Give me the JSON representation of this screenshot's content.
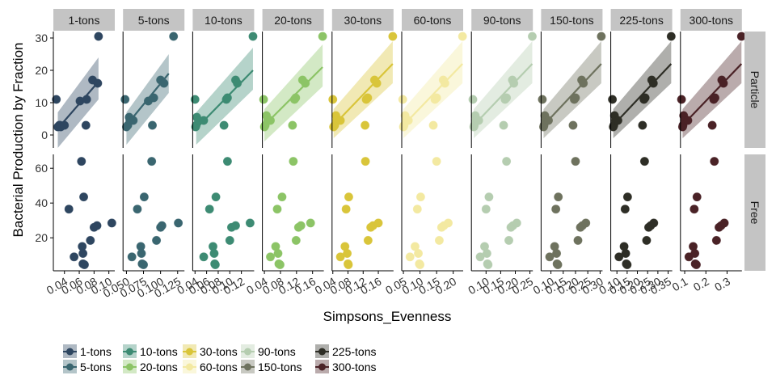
{
  "chart_data": {
    "type": "scatter",
    "xlabel": "Simpsons_Evenness",
    "ylabel": "Bacterial Production by Fraction",
    "row_strips": [
      "Particle",
      "Free"
    ],
    "y_ranges": {
      "Particle": {
        "ylim": [
          -4,
          32
        ],
        "ticks": [
          0,
          10,
          20,
          30
        ],
        "tick_labels": [
          "0",
          "10",
          "20",
          "30"
        ]
      },
      "Free": {
        "ylim": [
          1,
          68
        ],
        "ticks": [
          20,
          40,
          60
        ],
        "tick_labels": [
          "20",
          "40",
          "60"
        ]
      }
    },
    "legend": {
      "position": "bottom",
      "entries": [
        "1-tons",
        "5-tons",
        "10-tons",
        "20-tons",
        "30-tons",
        "60-tons",
        "90-tons",
        "150-tons",
        "225-tons",
        "300-tons"
      ]
    },
    "panels": [
      {
        "name": "1-tons",
        "color": "#2E4660",
        "xlim": [
          0.025,
          0.108
        ],
        "xticks": [
          0.04,
          0.06,
          0.08,
          0.1
        ],
        "xtick_labels": [
          "0.04",
          "0.06",
          "0.08",
          "0.10"
        ],
        "particle": {
          "x": [
            0.029,
            0.031,
            0.033,
            0.034,
            0.035,
            0.04,
            0.061,
            0.069,
            0.07,
            0.078,
            0.085,
            0.086
          ],
          "y": [
            11,
            2.5,
            3,
            3,
            2.5,
            3,
            10.5,
            3,
            11,
            17,
            16,
            30.5
          ]
        },
        "particle_fit": {
          "x": [
            0.031,
            0.086
          ],
          "y": [
            2,
            16.5
          ],
          "band_lo": [
            -4,
            11
          ],
          "band_hi": [
            7,
            24
          ]
        },
        "free": {
          "x": [
            0.046,
            0.053,
            0.063,
            0.064,
            0.065,
            0.065,
            0.066,
            0.067,
            0.075,
            0.08,
            0.084,
            0.104
          ],
          "y": [
            36.5,
            9,
            64,
            15,
            11,
            5,
            43.5,
            4.5,
            18.5,
            26,
            27,
            28.5
          ]
        }
      },
      {
        "name": "5-tons",
        "color": "#3A6670",
        "xlim": [
          0.045,
          0.135
        ],
        "xticks": [
          0.05,
          0.075,
          0.1,
          0.125
        ],
        "xtick_labels": [
          "0.050",
          "0.075",
          "0.100",
          "0.125"
        ],
        "particle": {
          "x": [
            0.048,
            0.05,
            0.052,
            0.054,
            0.055,
            0.06,
            0.082,
            0.088,
            0.09,
            0.1,
            0.105,
            0.119
          ],
          "y": [
            11,
            2.5,
            3,
            5.5,
            4.5,
            4.5,
            10.5,
            3,
            11.5,
            17,
            16,
            30.5
          ]
        },
        "particle_fit": {
          "x": [
            0.05,
            0.112
          ],
          "y": [
            3,
            19
          ],
          "band_lo": [
            -3,
            13
          ],
          "band_hi": [
            7,
            25
          ]
        },
        "free": {
          "x": [
            0.058,
            0.066,
            0.071,
            0.072,
            0.073,
            0.075,
            0.076,
            0.087,
            0.094,
            0.1,
            0.102,
            0.126
          ],
          "y": [
            9,
            36.5,
            15,
            11,
            5,
            4.5,
            43.5,
            64,
            18.5,
            26,
            27,
            28.5
          ]
        }
      },
      {
        "name": "10-tons",
        "color": "#3D8B73",
        "xlim": [
          0.036,
          0.142
        ],
        "xticks": [
          0.04,
          0.06,
          0.08,
          0.1,
          0.12
        ],
        "xtick_labels": [
          "0.04",
          "0.06",
          "0.08",
          "0.10",
          "0.12"
        ],
        "particle": {
          "x": [
            0.04,
            0.041,
            0.042,
            0.043,
            0.046,
            0.055,
            0.09,
            0.094,
            0.096,
            0.11,
            0.113,
            0.14
          ],
          "y": [
            11,
            2.5,
            3,
            5.5,
            4.5,
            4.5,
            3,
            11,
            11.5,
            17,
            16,
            30.5
          ]
        },
        "particle_fit": {
          "x": [
            0.042,
            0.14
          ],
          "y": [
            2,
            20
          ],
          "band_lo": [
            -3,
            14
          ],
          "band_hi": [
            7,
            27
          ]
        },
        "free": {
          "x": [
            0.055,
            0.065,
            0.071,
            0.073,
            0.074,
            0.075,
            0.076,
            0.096,
            0.1,
            0.103,
            0.11,
            0.135
          ],
          "y": [
            9,
            36.5,
            15,
            11,
            5,
            4.5,
            43.5,
            64,
            18.5,
            26,
            27,
            28.5
          ]
        }
      },
      {
        "name": "20-tons",
        "color": "#8CC466",
        "xlim": [
          0.035,
          0.188
        ],
        "xticks": [
          0.04,
          0.08,
          0.12,
          0.16
        ],
        "xtick_labels": [
          "0.04",
          "0.08",
          "0.12",
          "0.16"
        ],
        "particle": {
          "x": [
            0.038,
            0.04,
            0.042,
            0.045,
            0.048,
            0.055,
            0.11,
            0.115,
            0.118,
            0.135,
            0.142,
            0.185
          ],
          "y": [
            11,
            2.5,
            3,
            6,
            4.5,
            4.5,
            3,
            11,
            11.5,
            17,
            16,
            30.5
          ]
        },
        "particle_fit": {
          "x": [
            0.04,
            0.185
          ],
          "y": [
            3,
            21
          ],
          "band_lo": [
            -2,
            15
          ],
          "band_hi": [
            8,
            28
          ]
        },
        "free": {
          "x": [
            0.055,
            0.068,
            0.072,
            0.074,
            0.076,
            0.079,
            0.084,
            0.112,
            0.119,
            0.125,
            0.131,
            0.155
          ],
          "y": [
            9,
            15,
            36.5,
            11,
            5,
            4.5,
            43.5,
            64,
            18.5,
            26,
            27,
            28.5
          ]
        }
      },
      {
        "name": "30-tons",
        "color": "#D9C53A",
        "xlim": [
          0.038,
          0.2
        ],
        "xticks": [
          0.04,
          0.08,
          0.12,
          0.16
        ],
        "xtick_labels": [
          "0.04",
          "0.08",
          "0.12",
          "0.16"
        ],
        "particle": {
          "x": [
            0.04,
            0.042,
            0.045,
            0.048,
            0.05,
            0.06,
            0.125,
            0.128,
            0.132,
            0.15,
            0.156,
            0.198
          ],
          "y": [
            11,
            2.5,
            3,
            6,
            4.5,
            4.5,
            3,
            11,
            11.5,
            17,
            16,
            30.5
          ]
        },
        "particle_fit": {
          "x": [
            0.042,
            0.198
          ],
          "y": [
            3,
            22
          ],
          "band_lo": [
            -1,
            16
          ],
          "band_hi": [
            8,
            29
          ]
        },
        "free": {
          "x": [
            0.06,
            0.072,
            0.075,
            0.078,
            0.08,
            0.081,
            0.082,
            0.126,
            0.133,
            0.14,
            0.146,
            0.16
          ],
          "y": [
            9,
            15,
            36.5,
            11,
            5,
            4.5,
            43.5,
            64,
            18.5,
            26,
            27,
            28.5
          ]
        }
      },
      {
        "name": "60-tons",
        "color": "#F3E9A1",
        "xlim": [
          0.045,
          0.23
        ],
        "xticks": [
          0.05,
          0.1,
          0.15,
          0.2
        ],
        "xtick_labels": [
          "0.05",
          "0.10",
          "0.15",
          "0.20"
        ],
        "particle": {
          "x": [
            0.048,
            0.05,
            0.052,
            0.055,
            0.058,
            0.065,
            0.14,
            0.145,
            0.15,
            0.17,
            0.175,
            0.228
          ],
          "y": [
            11,
            2.5,
            3,
            6,
            4.5,
            4.5,
            3,
            11,
            11.5,
            17,
            16,
            30.5
          ]
        },
        "particle_fit": {
          "x": [
            0.05,
            0.228
          ],
          "y": [
            3,
            22
          ],
          "band_lo": [
            -1,
            16
          ],
          "band_hi": [
            8,
            29
          ]
        },
        "free": {
          "x": [
            0.07,
            0.085,
            0.092,
            0.095,
            0.098,
            0.1,
            0.102,
            0.15,
            0.158,
            0.165,
            0.172,
            0.185
          ],
          "y": [
            9,
            15,
            36.5,
            11,
            5,
            4.5,
            43.5,
            64,
            18.5,
            26,
            27,
            28.5
          ]
        }
      },
      {
        "name": "90-tons",
        "color": "#B5CDB0",
        "xlim": [
          0.05,
          0.26
        ],
        "xticks": [
          0.1,
          0.15,
          0.2,
          0.25
        ],
        "xtick_labels": [
          "0.10",
          "0.15",
          "0.20",
          "0.25"
        ],
        "particle": {
          "x": [
            0.055,
            0.058,
            0.06,
            0.063,
            0.065,
            0.075,
            0.16,
            0.165,
            0.17,
            0.19,
            0.195,
            0.258
          ],
          "y": [
            11,
            2.5,
            3,
            6,
            4.5,
            4.5,
            3,
            11,
            11.5,
            17,
            16,
            30.5
          ]
        },
        "particle_fit": {
          "x": [
            0.058,
            0.258
          ],
          "y": [
            3,
            22
          ],
          "band_lo": [
            -1,
            16
          ],
          "band_hi": [
            8,
            29
          ]
        },
        "free": {
          "x": [
            0.08,
            0.095,
            0.1,
            0.103,
            0.105,
            0.107,
            0.11,
            0.17,
            0.178,
            0.185,
            0.192,
            0.205
          ],
          "y": [
            9,
            15,
            36.5,
            11,
            5,
            4.5,
            43.5,
            64,
            18.5,
            26,
            27,
            28.5
          ]
        }
      },
      {
        "name": "150-tons",
        "color": "#6E725E",
        "xlim": [
          0.06,
          0.31
        ],
        "xticks": [
          0.1,
          0.15,
          0.2,
          0.25,
          0.3
        ],
        "xtick_labels": [
          "0.10",
          "0.15",
          "0.20",
          "0.25",
          "0.30"
        ],
        "particle": {
          "x": [
            0.065,
            0.07,
            0.072,
            0.075,
            0.078,
            0.09,
            0.19,
            0.195,
            0.2,
            0.225,
            0.232,
            0.305
          ],
          "y": [
            11,
            2.5,
            3,
            6,
            4.5,
            4.5,
            3,
            11,
            11.5,
            17,
            16,
            30.5
          ]
        },
        "particle_fit": {
          "x": [
            0.07,
            0.305
          ],
          "y": [
            3,
            22
          ],
          "band_lo": [
            -1,
            16
          ],
          "band_hi": [
            8,
            29
          ]
        },
        "free": {
          "x": [
            0.095,
            0.115,
            0.12,
            0.123,
            0.125,
            0.128,
            0.13,
            0.2,
            0.21,
            0.22,
            0.228,
            0.242
          ],
          "y": [
            9,
            15,
            36.5,
            11,
            5,
            4.5,
            43.5,
            64,
            18.5,
            26,
            27,
            28.5
          ]
        }
      },
      {
        "name": "225-tons",
        "color": "#2E2E26",
        "xlim": [
          0.07,
          0.37
        ],
        "xticks": [
          0.1,
          0.15,
          0.2,
          0.25,
          0.3,
          0.35
        ],
        "xtick_labels": [
          "0.10",
          "0.15",
          "0.20",
          "0.25",
          "0.30",
          "0.35"
        ],
        "particle": {
          "x": [
            0.078,
            0.082,
            0.085,
            0.088,
            0.092,
            0.105,
            0.225,
            0.232,
            0.238,
            0.27,
            0.278,
            0.365
          ],
          "y": [
            11,
            2.5,
            3,
            6,
            4.5,
            4.5,
            3,
            11,
            11.5,
            17,
            16,
            30.5
          ]
        },
        "particle_fit": {
          "x": [
            0.082,
            0.365
          ],
          "y": [
            3,
            22
          ],
          "band_lo": [
            -1,
            16
          ],
          "band_hi": [
            8,
            29
          ]
        },
        "free": {
          "x": [
            0.11,
            0.135,
            0.14,
            0.143,
            0.146,
            0.15,
            0.152,
            0.235,
            0.245,
            0.255,
            0.265,
            0.28
          ],
          "y": [
            9,
            15,
            36.5,
            11,
            5,
            4.5,
            43.5,
            64,
            18.5,
            26,
            27,
            28.5
          ]
        }
      },
      {
        "name": "300-tons",
        "color": "#4A2226",
        "xlim": [
          0.08,
          0.37
        ],
        "xticks": [
          0.1,
          0.2,
          0.3
        ],
        "xtick_labels": [
          "0.1",
          "0.2",
          "0.3"
        ],
        "particle": {
          "x": [
            0.085,
            0.09,
            0.092,
            0.095,
            0.1,
            0.115,
            0.23,
            0.237,
            0.243,
            0.275,
            0.283,
            0.368
          ],
          "y": [
            11,
            2.5,
            3,
            6,
            4.5,
            4.5,
            3,
            11,
            11.5,
            17,
            16,
            30.5
          ]
        },
        "particle_fit": {
          "x": [
            0.09,
            0.368
          ],
          "y": [
            3,
            22
          ],
          "band_lo": [
            -1,
            16
          ],
          "band_hi": [
            8,
            29
          ]
        },
        "free": {
          "x": [
            0.12,
            0.14,
            0.145,
            0.148,
            0.15,
            0.155,
            0.158,
            0.24,
            0.25,
            0.262,
            0.272,
            0.287
          ],
          "y": [
            9,
            15,
            36.5,
            11,
            5,
            4.5,
            43.5,
            64,
            18.5,
            26,
            27,
            28.5
          ]
        }
      }
    ]
  }
}
